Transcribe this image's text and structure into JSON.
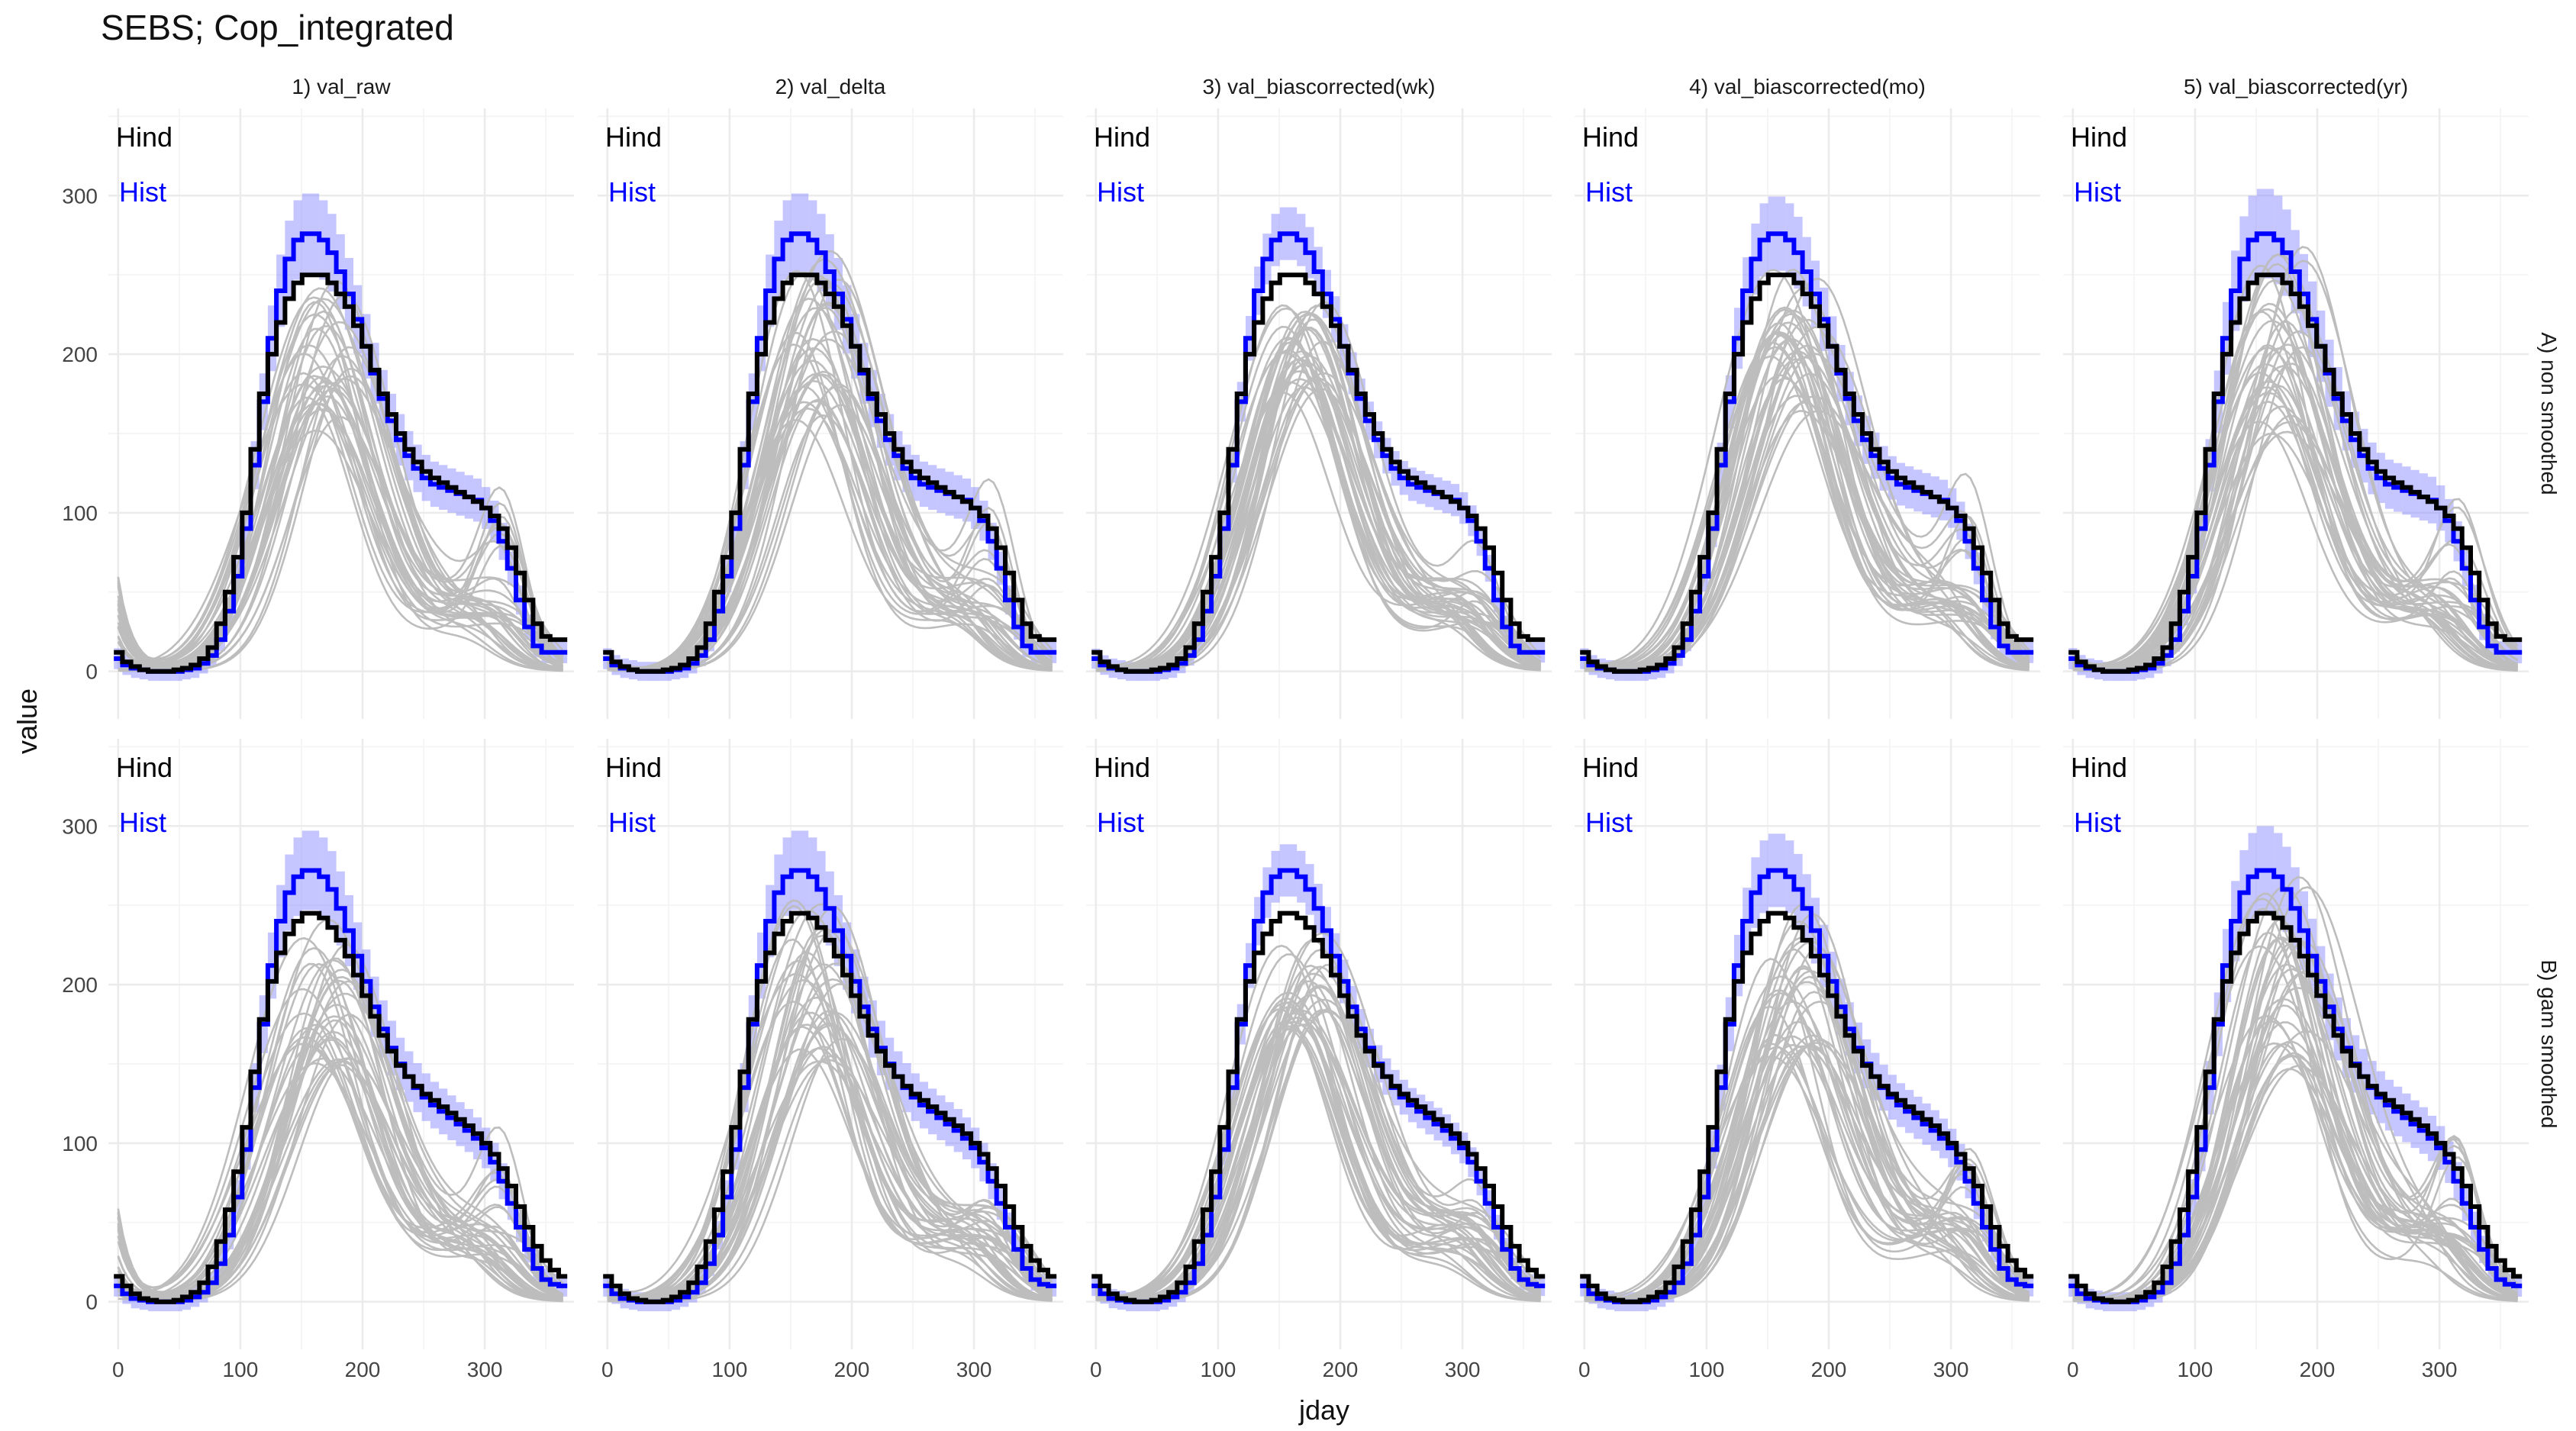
{
  "title": "SEBS; Cop_integrated",
  "colors": {
    "hind": "#000000",
    "hist": "#0000ff",
    "hist_band": "#7f7fff",
    "projection_lines": "#bdbdbd",
    "grid_major": "#ebebeb",
    "grid_minor": "#f5f5f5"
  },
  "chart_data": {
    "type": "line",
    "facet_columns": [
      "1) val_raw",
      "2) val_delta",
      "3) val_biascorrected(wk)",
      "4) val_biascorrected(mo)",
      "5) val_biascorrected(yr)"
    ],
    "facet_rows": [
      "A) non smoothed",
      "B) gam smoothed"
    ],
    "xlabel": "jday",
    "ylabel": "value",
    "xlim": [
      -8,
      373
    ],
    "ylim": [
      -30,
      355
    ],
    "x_ticks": [
      0,
      100,
      200,
      300
    ],
    "y_ticks": [
      0,
      100,
      200,
      300
    ],
    "grid": true,
    "legend_labels": [
      "Hind",
      "Hist"
    ],
    "legend_placement": "top-left of each panel",
    "step_x": [
      0,
      7,
      14,
      21,
      28,
      35,
      42,
      49,
      56,
      63,
      70,
      77,
      84,
      91,
      98,
      105,
      112,
      119,
      126,
      133,
      140,
      147,
      154,
      161,
      168,
      175,
      182,
      189,
      196,
      203,
      210,
      217,
      224,
      231,
      238,
      245,
      252,
      259,
      266,
      273,
      280,
      287,
      294,
      301,
      308,
      315,
      322,
      329,
      336,
      343,
      350,
      357,
      364
    ],
    "series": [
      {
        "name": "Hind",
        "row": "A) non smoothed",
        "values": [
          12,
          6,
          3,
          1,
          0,
          0,
          0,
          1,
          2,
          4,
          8,
          15,
          30,
          50,
          72,
          100,
          140,
          175,
          200,
          220,
          235,
          245,
          250,
          250,
          250,
          245,
          238,
          230,
          218,
          205,
          190,
          175,
          162,
          150,
          140,
          132,
          126,
          122,
          119,
          116,
          113,
          110,
          107,
          103,
          98,
          90,
          78,
          62,
          45,
          30,
          22,
          20,
          20
        ]
      },
      {
        "name": "Hist",
        "row": "A) non smoothed",
        "values": [
          8,
          4,
          2,
          1,
          0,
          0,
          0,
          0,
          1,
          2,
          5,
          10,
          20,
          38,
          60,
          90,
          130,
          170,
          210,
          240,
          260,
          272,
          276,
          276,
          272,
          264,
          252,
          238,
          222,
          205,
          188,
          172,
          158,
          146,
          136,
          128,
          122,
          118,
          116,
          114,
          112,
          110,
          108,
          103,
          95,
          82,
          65,
          45,
          28,
          16,
          12,
          12,
          12
        ]
      },
      {
        "name": "Hind",
        "row": "B) gam smoothed",
        "values": [
          16,
          10,
          5,
          2,
          1,
          0,
          0,
          1,
          3,
          6,
          12,
          22,
          38,
          58,
          82,
          110,
          145,
          178,
          202,
          220,
          232,
          240,
          245,
          245,
          242,
          236,
          228,
          218,
          206,
          193,
          180,
          168,
          158,
          149,
          142,
          136,
          131,
          127,
          123,
          119,
          115,
          111,
          106,
          100,
          93,
          84,
          73,
          60,
          47,
          35,
          26,
          20,
          16
        ]
      },
      {
        "name": "Hist",
        "row": "B) gam smoothed",
        "values": [
          10,
          5,
          2,
          1,
          0,
          0,
          0,
          0,
          1,
          3,
          6,
          12,
          24,
          42,
          66,
          96,
          135,
          175,
          212,
          240,
          258,
          268,
          272,
          272,
          268,
          260,
          248,
          234,
          218,
          202,
          186,
          172,
          160,
          150,
          142,
          135,
          129,
          124,
          120,
          116,
          112,
          108,
          103,
          97,
          88,
          76,
          62,
          47,
          33,
          21,
          14,
          11,
          10
        ]
      }
    ]
  }
}
